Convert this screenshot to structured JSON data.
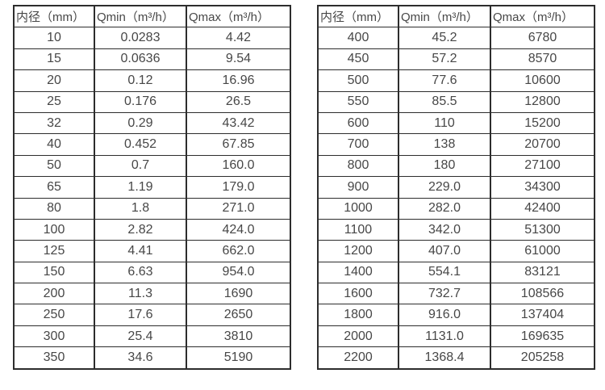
{
  "colors": {
    "background": "#ffffff",
    "border": "#2d2d2d",
    "text": "#474747"
  },
  "chart_data": [
    {
      "type": "table",
      "id": "left-table",
      "headers": [
        "内径（mm）",
        "Qmin（m³/h）",
        "Qmax（m³/h）"
      ],
      "rows": [
        [
          "10",
          "0.0283",
          "4.42"
        ],
        [
          "15",
          "0.0636",
          "9.54"
        ],
        [
          "20",
          "0.12",
          "16.96"
        ],
        [
          "25",
          "0.176",
          "26.5"
        ],
        [
          "32",
          "0.29",
          "43.42"
        ],
        [
          "40",
          "0.452",
          "67.85"
        ],
        [
          "50",
          "0.7",
          "160.0"
        ],
        [
          "65",
          "1.19",
          "179.0"
        ],
        [
          "80",
          "1.8",
          "271.0"
        ],
        [
          "100",
          "2.82",
          "424.0"
        ],
        [
          "125",
          "4.41",
          "662.0"
        ],
        [
          "150",
          "6.63",
          "954.0"
        ],
        [
          "200",
          "11.3",
          "1690"
        ],
        [
          "250",
          "17.6",
          "2650"
        ],
        [
          "300",
          "25.4",
          "3810"
        ],
        [
          "350",
          "34.6",
          "5190"
        ]
      ]
    },
    {
      "type": "table",
      "id": "right-table",
      "headers": [
        "内径（mm）",
        "Qmin（m³/h）",
        "Qmax（m³/h）"
      ],
      "rows": [
        [
          "400",
          "45.2",
          "6780"
        ],
        [
          "450",
          "57.2",
          "8570"
        ],
        [
          "500",
          "77.6",
          "10600"
        ],
        [
          "550",
          "85.5",
          "12800"
        ],
        [
          "600",
          "110",
          "15200"
        ],
        [
          "700",
          "138",
          "20700"
        ],
        [
          "800",
          "180",
          "27100"
        ],
        [
          "900",
          "229.0",
          "34300"
        ],
        [
          "1000",
          "282.0",
          "42400"
        ],
        [
          "1100",
          "342.0",
          "51300"
        ],
        [
          "1200",
          "407.0",
          "61000"
        ],
        [
          "1400",
          "554.1",
          "83121"
        ],
        [
          "1600",
          "732.7",
          "108566"
        ],
        [
          "1800",
          "916.0",
          "137404"
        ],
        [
          "2000",
          "1131.0",
          "169635"
        ],
        [
          "2200",
          "1368.4",
          "205258"
        ]
      ]
    }
  ]
}
